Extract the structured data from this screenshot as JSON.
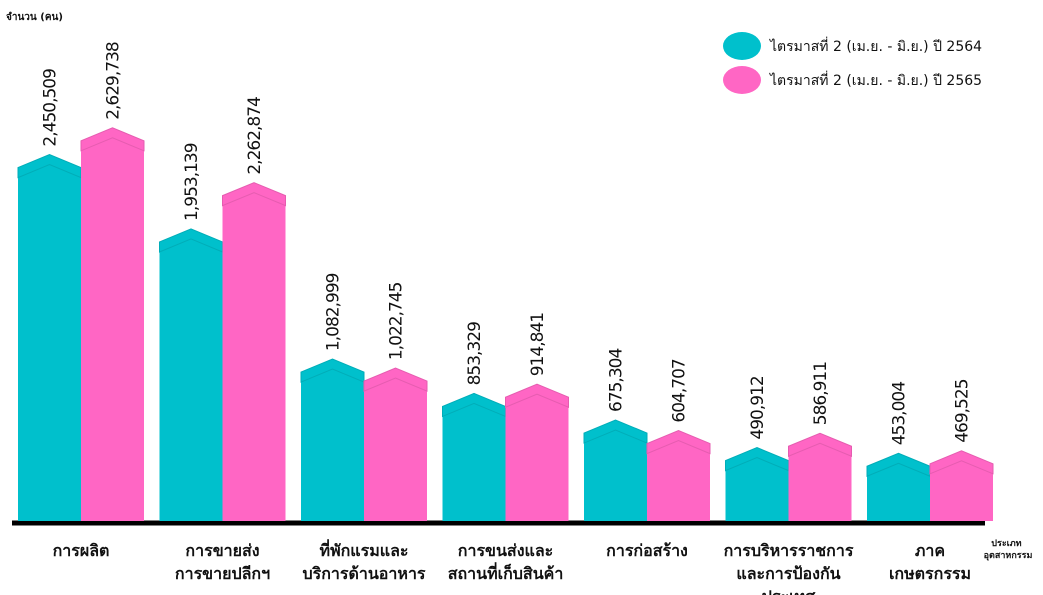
{
  "chart_data": {
    "type": "bar",
    "y_label": "จำนวน (คน)",
    "x_label": [
      "ประเภท",
      "อุตสาหกรรม"
    ],
    "categories": [
      [
        "การผลิต"
      ],
      [
        "การขายส่ง",
        "การขายปลีกฯ"
      ],
      [
        "ที่พักแรมและ",
        "บริการด้านอาหาร"
      ],
      [
        "การขนส่งและ",
        "สถานที่เก็บสินค้า"
      ],
      [
        "การก่อสร้าง"
      ],
      [
        "การบริหารราชการ",
        "และการป้องกัน",
        "ประเทศ"
      ],
      [
        "ภาค",
        "เกษตรกรรม"
      ]
    ],
    "series": [
      {
        "name": "ไตรมาสที่ 2 (เม.ย. - มิ.ย.)  ปี 2564",
        "color": "#00c0cc",
        "values": [
          2450509,
          1953139,
          1082999,
          853329,
          675304,
          490912,
          453004
        ],
        "value_labels": [
          "2,450,509",
          "1,953,139",
          "1,082,999",
          "853,329",
          "675,304",
          "490,912",
          "453,004"
        ]
      },
      {
        "name": "ไตรมาสที่ 2 (เม.ย. - มิ.ย.)  ปี 2565",
        "color": "#ff66c4",
        "values": [
          2629738,
          2262874,
          1022745,
          914841,
          604707,
          586911,
          469525
        ],
        "value_labels": [
          "2,629,738",
          "2,262,874",
          "1,022,745",
          "914,841",
          "604,707",
          "586,911",
          "469,525"
        ]
      }
    ],
    "ylim": [
      0,
      3150000
    ],
    "legend": "top-right"
  }
}
